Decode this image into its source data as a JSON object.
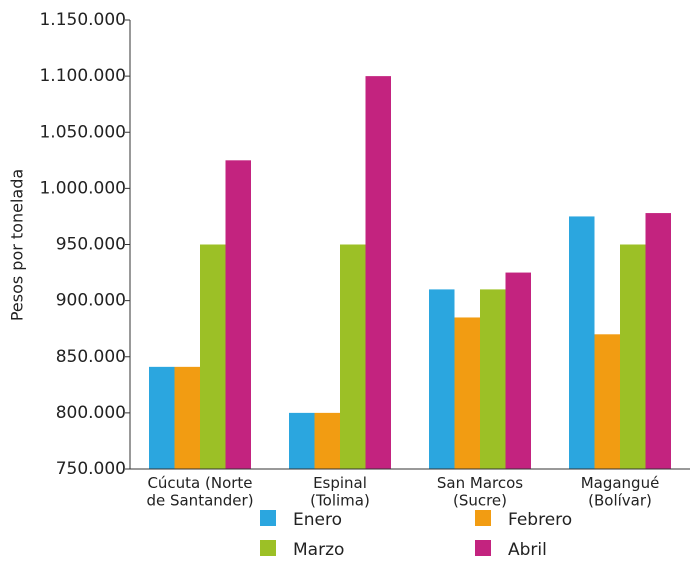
{
  "chart_data": {
    "type": "bar",
    "y_label": "Pesos por tonelada",
    "categories": [
      "Cúcuta (Norte\nde Santander)",
      "Espinal\n(Tolima)",
      "San Marcos\n(Sucre)",
      "Magangué\n(Bolívar)"
    ],
    "series": [
      {
        "name": "Enero",
        "color": "#2ba6df",
        "values": [
          841000,
          800000,
          910000,
          975000
        ]
      },
      {
        "name": "Febrero",
        "color": "#f29c12",
        "values": [
          841000,
          800000,
          885000,
          870000
        ]
      },
      {
        "name": "Marzo",
        "color": "#9cc026",
        "values": [
          950000,
          950000,
          910000,
          950000
        ]
      },
      {
        "name": "Abril",
        "color": "#c3237f",
        "values": [
          1025000,
          1100000,
          925000,
          978000
        ]
      }
    ],
    "ylim": [
      750000,
      1150000
    ],
    "yticks": [
      {
        "value": 750000,
        "label": "750.000"
      },
      {
        "value": 800000,
        "label": "800.000"
      },
      {
        "value": 850000,
        "label": "850.000"
      },
      {
        "value": 900000,
        "label": "900.000"
      },
      {
        "value": 950000,
        "label": "950.000"
      },
      {
        "value": 1000000,
        "label": "1.000.000"
      },
      {
        "value": 1050000,
        "label": "1.050.000"
      },
      {
        "value": 1100000,
        "label": "1.100.000"
      },
      {
        "value": 1150000,
        "label": "1.150.000"
      }
    ],
    "grid": false
  }
}
